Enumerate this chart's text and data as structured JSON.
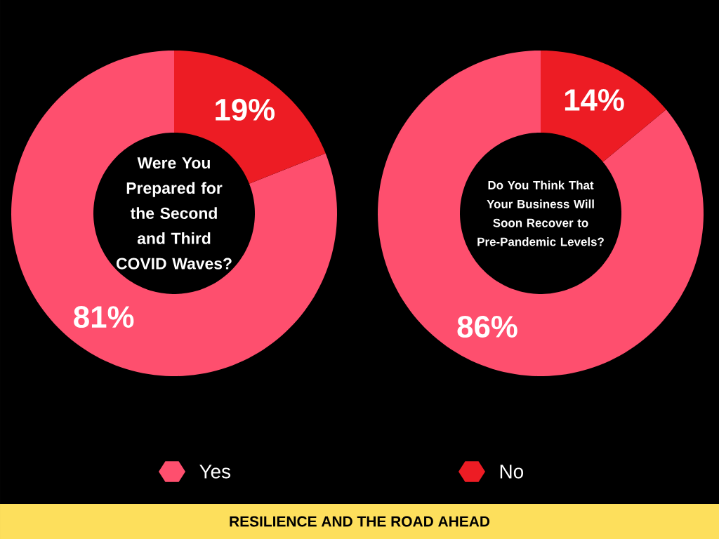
{
  "chart_data": [
    {
      "type": "donut",
      "title": "Were You Prepared for the Second and Third COVID Waves?",
      "categories": [
        "Yes",
        "No"
      ],
      "values": [
        81,
        19
      ],
      "colors": [
        "#fe4f6e",
        "#ed1c24"
      ],
      "value_labels": [
        "81%",
        "19%"
      ],
      "legend": "bottom",
      "annotations": [
        "RESILIENCE AND THE ROAD AHEAD"
      ]
    },
    {
      "type": "donut",
      "title": "Do You Think That Your Business Will Soon Recover to Pre-Pandemic Levels?",
      "values": [
        86,
        14
      ],
      "colors": [
        "#fe4f6e",
        "#ed1c24"
      ],
      "value_labels": [
        "86%",
        "14%"
      ]
    }
  ]
}
